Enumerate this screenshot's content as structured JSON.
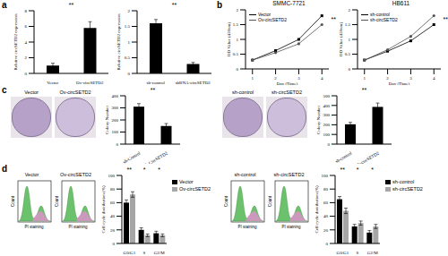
{
  "chart_data": [
    {
      "type": "bar",
      "categories": [
        "Vector",
        "Ov-circSETD2"
      ],
      "values": [
        1,
        5.8
      ],
      "errors": [
        0.3,
        0.8
      ],
      "color": "#000000",
      "ylabel": "Relative circSETD2 expression",
      "ylim": [
        0,
        8
      ],
      "yticks": [
        0,
        2,
        4,
        6,
        8
      ],
      "annotations": [
        "**"
      ]
    },
    {
      "type": "bar",
      "categories": [
        "sh-control",
        "shRNA-circSETD2"
      ],
      "values": [
        1.6,
        0.3
      ],
      "errors": [
        0.12,
        0.05
      ],
      "color": "#000000",
      "ylabel": "Relative circSETD2 expression",
      "ylim": [
        0,
        2
      ],
      "yticks": [
        0,
        0.5,
        1,
        1.5,
        2
      ],
      "annotations": [
        "**"
      ]
    },
    {
      "type": "line",
      "title": "SMMC-7721",
      "xlabel": "Day (Time)",
      "ylabel": "OD Value (450nm)",
      "x": [
        1,
        2,
        3,
        4
      ],
      "xlim": [
        0.7,
        4.3
      ],
      "xticks": [
        1,
        2,
        3,
        4
      ],
      "ylim": [
        0,
        2
      ],
      "yticks": [
        0,
        0.5,
        1,
        1.5,
        2
      ],
      "legend": "upper left",
      "annotations": [
        "**"
      ],
      "series": [
        {
          "name": "Vector",
          "color": "#000000",
          "marker": "square",
          "values": [
            0.3,
            0.62,
            1.0,
            1.8
          ]
        },
        {
          "name": "Ov-circSETD2",
          "color": "#555555",
          "marker": "circle",
          "values": [
            0.3,
            0.55,
            0.85,
            1.5
          ]
        }
      ]
    },
    {
      "type": "line",
      "title": "HB611",
      "xlabel": "Day (Time)",
      "ylabel": "OD Value (450nm)",
      "x": [
        1,
        2,
        3,
        4
      ],
      "xlim": [
        0.7,
        4.3
      ],
      "xticks": [
        1,
        2,
        3,
        4
      ],
      "ylim": [
        0,
        2
      ],
      "yticks": [
        0,
        0.5,
        1,
        1.5,
        2
      ],
      "legend": "upper left",
      "annotations": [
        "**"
      ],
      "series": [
        {
          "name": "sh-control",
          "color": "#000000",
          "marker": "square",
          "values": [
            0.3,
            0.6,
            0.95,
            1.5
          ]
        },
        {
          "name": "sh-circSETD2",
          "color": "#555555",
          "marker": "circle",
          "values": [
            0.3,
            0.65,
            1.1,
            1.8
          ]
        }
      ]
    },
    {
      "type": "bar",
      "categories": [
        "sh-Control",
        "sh-CircSETD2"
      ],
      "values": [
        310,
        150
      ],
      "errors": [
        25,
        20
      ],
      "color": "#000000",
      "ylabel": "Colony Number",
      "ylim": [
        0,
        400
      ],
      "yticks": [
        0,
        100,
        200,
        300,
        400
      ],
      "annotations": [
        "**"
      ]
    },
    {
      "type": "bar",
      "categories": [
        "sh-control",
        "sh-circSETD2"
      ],
      "values": [
        205,
        385
      ],
      "errors": [
        20,
        40
      ],
      "color": "#000000",
      "ylabel": "Colony Number",
      "ylim": [
        0,
        500
      ],
      "yticks": [
        0,
        100,
        200,
        300,
        400,
        500
      ],
      "annotations": [
        "**"
      ]
    },
    {
      "type": "bar",
      "categories": [
        "G0/G1",
        "S",
        "G2/M"
      ],
      "ylabel": "Cell cycle distribution (%)",
      "ylim": [
        0,
        100
      ],
      "yticks": [
        0,
        20,
        40,
        60,
        80,
        100
      ],
      "legend": "right",
      "annotations": [
        "**",
        "*",
        "*"
      ],
      "series": [
        {
          "name": "Vector",
          "color": "#000000",
          "values": [
            60,
            20,
            15
          ],
          "errors": [
            4,
            3,
            3
          ]
        },
        {
          "name": "Ov-circSETD2",
          "color": "#a6a6a6",
          "values": [
            72,
            12,
            12
          ],
          "errors": [
            4,
            2,
            2
          ]
        }
      ]
    },
    {
      "type": "bar",
      "categories": [
        "G0/G1",
        "S",
        "G2/M"
      ],
      "ylabel": "Cell cycle distribution (%)",
      "ylim": [
        0,
        100
      ],
      "yticks": [
        0,
        20,
        40,
        60,
        80,
        100
      ],
      "legend": "right",
      "annotations": [
        "**",
        "*",
        "*"
      ],
      "series": [
        {
          "name": "sh-control",
          "color": "#000000",
          "values": [
            65,
            25,
            16
          ],
          "errors": [
            4,
            3,
            3
          ]
        },
        {
          "name": "sh-circSETD2",
          "color": "#a6a6a6",
          "values": [
            48,
            30,
            25
          ],
          "errors": [
            4,
            3,
            3
          ]
        }
      ]
    }
  ],
  "figure": {
    "panels": [
      "a",
      "b",
      "c",
      "d"
    ],
    "colony_images": [
      [
        "Vector",
        "Ov-circSETD2"
      ],
      [
        "sh-control",
        "sh-circSETD2"
      ]
    ],
    "flow_images": [
      {
        "titles": [
          "Vector",
          "Ov-circSETD2"
        ],
        "ylabel": "Count",
        "xlabel": "PI staining"
      },
      {
        "titles": [
          "sh-control",
          "sh-circSETD2"
        ],
        "ylabel": "Count",
        "xlabel": "PI staining"
      }
    ]
  }
}
